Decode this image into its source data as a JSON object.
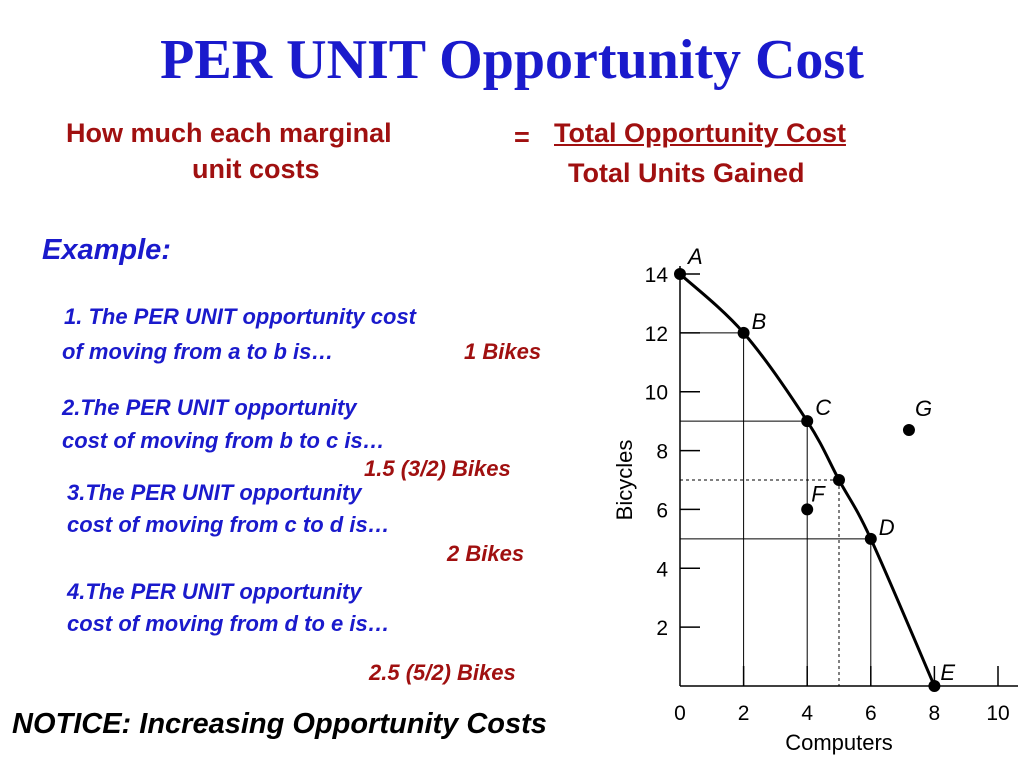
{
  "title": "PER UNIT Opportunity Cost",
  "definition": {
    "left_line1": "How much each marginal",
    "left_line2": "unit costs",
    "equals": "=",
    "numerator": "Total Opportunity Cost",
    "denominator": "Total Units Gained"
  },
  "example_label": "Example:",
  "items": [
    {
      "line1": "1. The PER UNIT opportunity cost",
      "line2": "of moving from a to b is…",
      "answer": "1 Bikes"
    },
    {
      "line1": "2.The PER UNIT opportunity",
      "line2": "cost of moving from b to c is…",
      "answer": "1.5 (3/2) Bikes"
    },
    {
      "line1": "3.The PER UNIT opportunity",
      "line2": "cost of moving from c to d is…",
      "answer": "2 Bikes"
    },
    {
      "line1": "4.The PER UNIT opportunity",
      "line2": "cost of moving from d to e is…",
      "answer": "2.5 (5/2) Bikes"
    }
  ],
  "notice": "NOTICE: Increasing Opportunity Costs",
  "colors": {
    "title": "#1a1acc",
    "red": "#a01010",
    "blue": "#1a1acc",
    "ink": "#000000"
  },
  "chart_data": {
    "type": "line",
    "xlabel": "Computers",
    "ylabel": "Bicycles",
    "xlim": [
      0,
      10
    ],
    "ylim": [
      0,
      14
    ],
    "xticks": [
      "0",
      "2",
      "4",
      "6",
      "8",
      "10"
    ],
    "yticks": [
      "2",
      "4",
      "6",
      "8",
      "10",
      "12",
      "14"
    ],
    "curve": [
      {
        "label": "A",
        "x": 0,
        "y": 14
      },
      {
        "label": "B",
        "x": 2,
        "y": 12
      },
      {
        "label": "C",
        "x": 4,
        "y": 9
      },
      {
        "label": "",
        "x": 5,
        "y": 7
      },
      {
        "label": "D",
        "x": 6,
        "y": 5
      },
      {
        "label": "E",
        "x": 8,
        "y": 0
      }
    ],
    "other_points": [
      {
        "label": "F",
        "x": 4,
        "y": 6
      },
      {
        "label": "G",
        "x": 7.2,
        "y": 8.7
      }
    ]
  }
}
